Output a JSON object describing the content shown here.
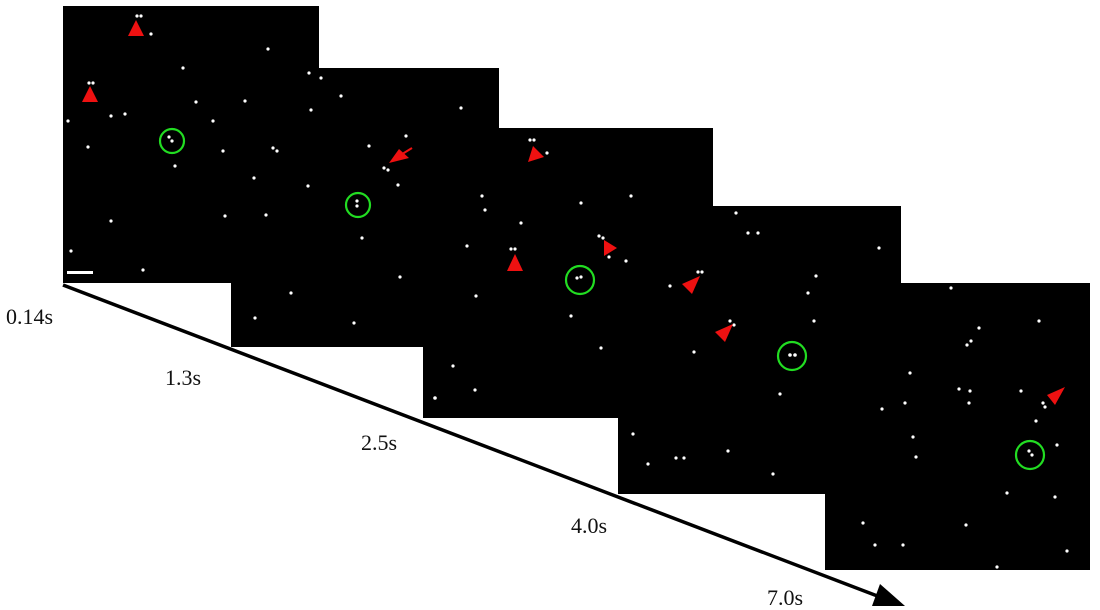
{
  "figure": {
    "time_labels": [
      "0.14s",
      "1.3s",
      "2.5s",
      "4.0s",
      "7.0s"
    ],
    "particle_color": "#ffffff",
    "circle_color": "#22dd22",
    "arrow_color": "#ee1111",
    "timeline_color": "#000000"
  }
}
